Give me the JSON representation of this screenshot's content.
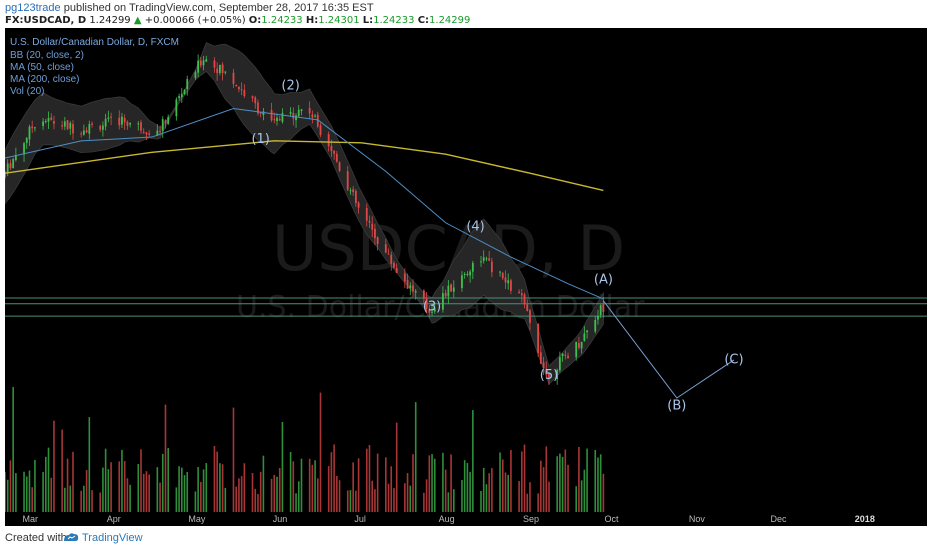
{
  "header": {
    "author": "pg123trade",
    "published_text": "published on TradingView.com, September 28, 2017 16:35 EST",
    "symbol": "FX:USDCAD, D",
    "last_price": "1.24299",
    "change_arrow": "▲",
    "change": "+0.00066 (+0.05%)",
    "o_label": "O:",
    "o_value": "1.24233",
    "h_label": "H:",
    "h_value": "1.24301",
    "l_label": "L:",
    "l_value": "1.24233",
    "c_label": "C:",
    "c_value": "1.24299"
  },
  "legend": {
    "title": "U.S. Dollar/Canadian Dollar, D, FXCM",
    "bb": "BB (20, close, 2)",
    "ma50": "MA (50, close)",
    "ma200": "MA (200, close)",
    "vol": "Vol (20)"
  },
  "watermark": {
    "ticker": "USDCAD, D",
    "name": "U.S. Dollar/Canadian Dollar"
  },
  "footer": {
    "created_with": "Created with",
    "brand": "TradingView"
  },
  "colors": {
    "background": "#000000",
    "up_candle": "#3fbf4f",
    "down_candle": "#e04848",
    "bollinger_fill": "#262626",
    "ma50": "#4f8fc8",
    "ma200": "#c8b830",
    "wave_labels": "#a9c6e8",
    "support_lines": "#4a8f7a"
  },
  "chart_data": {
    "type": "candlestick",
    "x_ticks": [
      "Mar",
      "Apr",
      "May",
      "Jun",
      "Jul",
      "Aug",
      "Sep",
      "Oct",
      "Nov",
      "Dec",
      "2018"
    ],
    "price_path": [
      {
        "x": "2017-02-20",
        "y": 1.312
      },
      {
        "x": "2017-03-05",
        "y": 1.343
      },
      {
        "x": "2017-03-20",
        "y": 1.337
      },
      {
        "x": "2017-04-05",
        "y": 1.342
      },
      {
        "x": "2017-04-18",
        "y": 1.335
      },
      {
        "x": "2017-05-05",
        "y": 1.375
      },
      {
        "x": "2017-05-15",
        "y": 1.364
      },
      {
        "x": "2017-05-30",
        "y": 1.34
      },
      {
        "x": "2017-06-12",
        "y": 1.349
      },
      {
        "x": "2017-06-20",
        "y": 1.33
      },
      {
        "x": "2017-07-01",
        "y": 1.295
      },
      {
        "x": "2017-07-15",
        "y": 1.263
      },
      {
        "x": "2017-07-27",
        "y": 1.242
      },
      {
        "x": "2017-08-15",
        "y": 1.27
      },
      {
        "x": "2017-08-30",
        "y": 1.248
      },
      {
        "x": "2017-09-08",
        "y": 1.208
      },
      {
        "x": "2017-09-20",
        "y": 1.225
      },
      {
        "x": "2017-09-28",
        "y": 1.243
      }
    ],
    "wave_labels": [
      {
        "label": "(1)",
        "x": "2017-05-25",
        "y": 1.33
      },
      {
        "label": "(2)",
        "x": "2017-06-05",
        "y": 1.358
      },
      {
        "label": "(3)",
        "x": "2017-07-27",
        "y": 1.242
      },
      {
        "label": "(4)",
        "x": "2017-08-12",
        "y": 1.284
      },
      {
        "label": "(5)",
        "x": "2017-09-08",
        "y": 1.206
      },
      {
        "label": "(A)",
        "x": "2017-09-28",
        "y": 1.256
      },
      {
        "label": "(B)",
        "x": "2017-10-25",
        "y": 1.19
      },
      {
        "label": "(C)",
        "x": "2017-11-15",
        "y": 1.214
      }
    ],
    "projection": [
      {
        "x": "2017-09-28",
        "y": 1.247
      },
      {
        "x": "2017-10-25",
        "y": 1.196
      },
      {
        "x": "2017-11-15",
        "y": 1.216
      }
    ],
    "horizontal_levels": [
      1.2485,
      1.2455,
      1.239
    ],
    "ma200": [
      {
        "x": "2017-02-20",
        "y": 1.314
      },
      {
        "x": "2017-04-15",
        "y": 1.325
      },
      {
        "x": "2017-05-30",
        "y": 1.331
      },
      {
        "x": "2017-07-01",
        "y": 1.33
      },
      {
        "x": "2017-08-01",
        "y": 1.324
      },
      {
        "x": "2017-09-01",
        "y": 1.314
      },
      {
        "x": "2017-09-28",
        "y": 1.305
      }
    ],
    "ma50": [
      {
        "x": "2017-02-20",
        "y": 1.322
      },
      {
        "x": "2017-03-20",
        "y": 1.331
      },
      {
        "x": "2017-04-15",
        "y": 1.333
      },
      {
        "x": "2017-05-15",
        "y": 1.348
      },
      {
        "x": "2017-06-15",
        "y": 1.342
      },
      {
        "x": "2017-07-10",
        "y": 1.315
      },
      {
        "x": "2017-08-01",
        "y": 1.288
      },
      {
        "x": "2017-08-25",
        "y": 1.27
      },
      {
        "x": "2017-09-15",
        "y": 1.256
      },
      {
        "x": "2017-09-28",
        "y": 1.248
      }
    ],
    "ylim": [
      1.175,
      1.385
    ],
    "grid": false,
    "legend_position": "top-left"
  }
}
